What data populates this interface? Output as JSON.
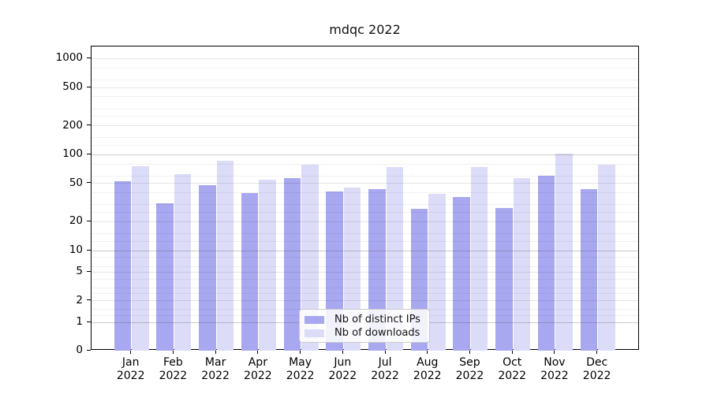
{
  "chart_data": {
    "type": "bar",
    "title": "mdqc 2022",
    "months": [
      "Jan",
      "Feb",
      "Mar",
      "Apr",
      "May",
      "Jun",
      "Jul",
      "Aug",
      "Sep",
      "Oct",
      "Nov",
      "Dec"
    ],
    "year": "2022",
    "series": [
      {
        "name": "Nb of distinct IPs",
        "color": "#a8a8f0",
        "values": [
          53,
          31,
          48,
          40,
          57,
          41,
          44,
          27,
          36,
          28,
          60,
          44
        ]
      },
      {
        "name": "Nb of downloads",
        "color": "#dcdcf9",
        "values": [
          76,
          63,
          87,
          55,
          78,
          45,
          74,
          39,
          74,
          57,
          103,
          79
        ]
      }
    ],
    "yticks": [
      0,
      1,
      2,
      5,
      10,
      20,
      50,
      100,
      200,
      500,
      1000
    ],
    "ylim": [
      0,
      1000
    ],
    "yscale": "symlog",
    "grid": true,
    "legend_position": "bottom-center"
  },
  "colors": {
    "major_gridline": "rgba(70,70,70,0.28)",
    "mid_gridline": "rgba(0,0,0,0.10)",
    "minor_gridline": "rgba(0,0,0,0.055)",
    "axis": "#000000",
    "background": "#ffffff"
  }
}
